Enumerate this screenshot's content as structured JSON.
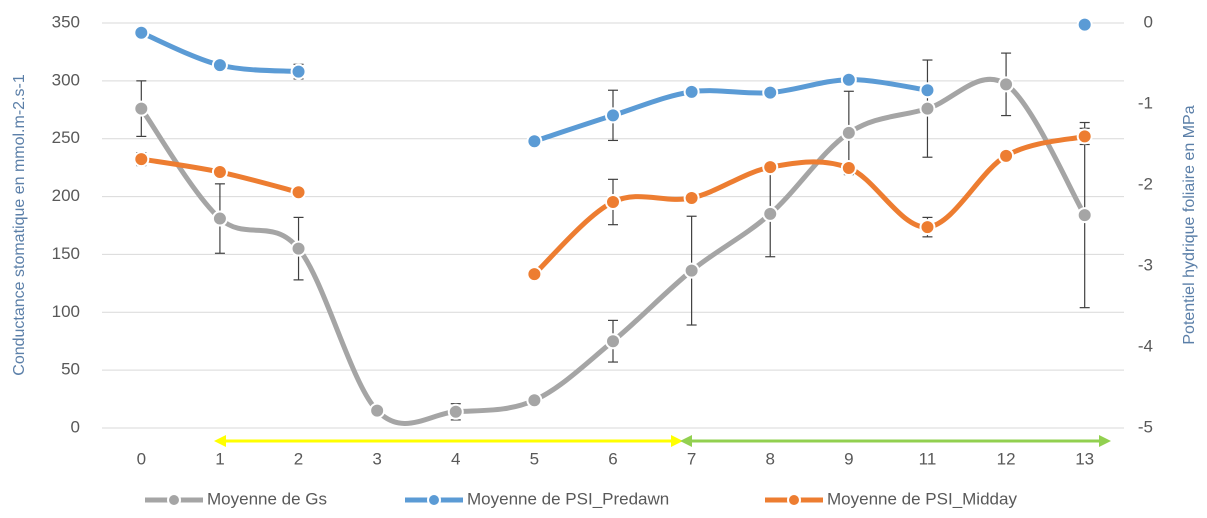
{
  "chart_data": {
    "type": "line",
    "y_label": "Conductance stomatique en mmol.m-2.s-1",
    "y2_label": "Potentiel hydrique foliaire en MPa",
    "categories": [
      "0",
      "1",
      "2",
      "3",
      "4",
      "5",
      "6",
      "7",
      "8",
      "9",
      "11",
      "12",
      "13"
    ],
    "ylim": [
      0,
      350
    ],
    "yticks": [
      0,
      50,
      100,
      150,
      200,
      250,
      300,
      350
    ],
    "y2lim": [
      -5,
      0
    ],
    "y2ticks": [
      -5,
      -4,
      -3,
      -2,
      -1,
      0
    ],
    "grid": true,
    "smooth": true,
    "legend": "bottom",
    "series": [
      {
        "name": "Moyenne de Gs",
        "color": "#a5a5a5",
        "axis": "y",
        "values": [
          276,
          181,
          155,
          15,
          14,
          24,
          75,
          136,
          185,
          255,
          276,
          297,
          184
        ],
        "errors": [
          24,
          30,
          27,
          null,
          7,
          null,
          18,
          47,
          37,
          36,
          42,
          27,
          80
        ]
      },
      {
        "name": "Moyenne de PSI_Predawn",
        "color": "#5b9bd5",
        "axis": "y2",
        "values": [
          -0.12,
          -0.52,
          -0.6,
          null,
          null,
          -1.46,
          -1.14,
          -0.85,
          -0.86,
          -0.7,
          -0.83,
          null,
          -0.02
        ],
        "errors": [
          null,
          null,
          0.09,
          null,
          null,
          null,
          0.31,
          null,
          null,
          null,
          null,
          null,
          null
        ]
      },
      {
        "name": "Moyenne de PSI_Midday",
        "color": "#ed7d31",
        "axis": "y2",
        "values": [
          -1.68,
          -1.84,
          -2.09,
          null,
          null,
          -3.1,
          -2.21,
          -2.16,
          -1.78,
          -1.79,
          -2.52,
          -1.64,
          -1.4
        ],
        "errors": [
          0.08,
          0.05,
          null,
          null,
          null,
          null,
          0.28,
          null,
          null,
          0.05,
          0.12,
          null,
          0.1
        ]
      }
    ]
  }
}
